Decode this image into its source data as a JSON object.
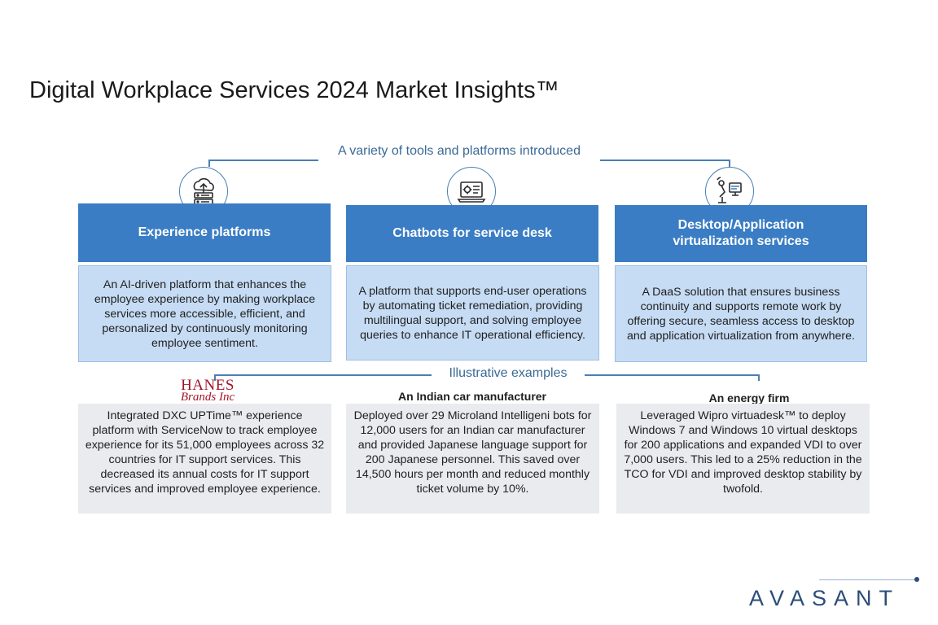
{
  "title": "Digital Workplace Services 2024 Market Insights™",
  "tools_label": "A variety of tools and platforms introduced",
  "examples_label": "Illustrative examples",
  "columns": [
    {
      "icon": "cloud-server-icon",
      "header": "Experience platforms",
      "description": "An AI-driven platform that enhances the employee experience by making workplace services more accessible, efficient, and personalized by continuously monitoring employee sentiment.",
      "example_logo_line1": "HANES",
      "example_logo_line2": "Brands Inc",
      "example_text": "Integrated DXC UPTime™ experience platform with ServiceNow to track employee experience for its 51,000 employees across 32 countries for IT support services. This decreased its annual costs for IT support services and improved employee experience."
    },
    {
      "icon": "laptop-gear-icon",
      "header": "Chatbots for service desk",
      "description": "A platform that supports end-user operations by automating ticket remediation, providing multilingual support, and solving employee queries to enhance IT operational efficiency.",
      "example_title": "An Indian car manufacturer",
      "example_text": "Deployed over 29 Microland Intelligeni bots for 12,000 users for an Indian car manufacturer and provided Japanese language support for 200 Japanese personnel. This saved over 14,500 hours per month and reduced monthly ticket volume by 10%."
    },
    {
      "icon": "robot-desktop-icon",
      "header": "Desktop/Application virtualization services",
      "description": "A DaaS solution that ensures business continuity and supports remote work by offering secure, seamless access to desktop and application virtualization from anywhere.",
      "example_title": "An energy firm",
      "example_text": "Leveraged Wipro virtuadesk™ to deploy Windows 7 and Windows 10 virtual desktops for 200 applications and expanded VDI to over 7,000 users. This led to a 25% reduction in the TCO for VDI and improved desktop stability by twofold."
    }
  ],
  "brand": "AVASANT",
  "colors": {
    "header_blue": "#3a7dc4",
    "light_blue": "#c6dcf4",
    "grey": "#e9ebef",
    "accent_line": "#4a7fb5"
  }
}
